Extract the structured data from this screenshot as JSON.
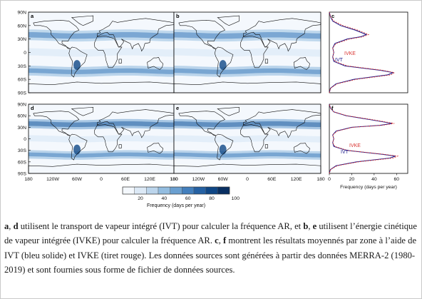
{
  "panels": {
    "a": {
      "letter": "a"
    },
    "b": {
      "letter": "b"
    },
    "c": {
      "letter": "c"
    },
    "d": {
      "letter": "d"
    },
    "e": {
      "letter": "e"
    },
    "f": {
      "letter": "f"
    }
  },
  "lat_ticks": [
    "90N",
    "60N",
    "30N",
    "0",
    "30S",
    "60S",
    "90S"
  ],
  "lon_ticks": [
    "180",
    "120W",
    "60W",
    "0",
    "60E",
    "120E",
    "180"
  ],
  "colorbar": {
    "ticks": [
      "20",
      "40",
      "60",
      "80",
      "100"
    ],
    "label": "Frequency (days per year)",
    "colors": [
      "#f4f8fd",
      "#dce9f6",
      "#bcd5ec",
      "#93bde0",
      "#6a9fd0",
      "#437fbd",
      "#2561a3",
      "#0f4786",
      "#082f62"
    ]
  },
  "profile_axis": {
    "ticks": [
      "0",
      "20",
      "40",
      "60"
    ],
    "label": "Frequency (days per year)"
  },
  "legend": {
    "ivke": "IVKE",
    "ivt": "IVT"
  },
  "colors": {
    "ivt": "#1a1a8c",
    "ivke": "#d9322e"
  },
  "caption": {
    "a": "a",
    "sep1": ", ",
    "d": "d",
    "t1": " utilisent le transport de vapeur intégré (IVT) pour calculer la fréquence AR, et ",
    "b": "b",
    "sep2": ", ",
    "e": "e",
    "t2": " utilisent l’énergie cinétique de vapeur intégrée (IVKE) pour calculer la fréquence AR. ",
    "c": "c",
    "sep3": ", ",
    "f": "f",
    "t3": " montrent les résultats moyennés par zone à l’aide de IVT (bleu solide) et IVKE (tiret rouge). Les données sources sont générées à partir des données MERRA-2 (1980-2019) et sont fournies sous forme de fichier de données sources."
  },
  "chart_data": [
    {
      "type": "line",
      "panel": "c",
      "xlabel": "Frequency (days per year)",
      "xlim": [
        0,
        70
      ],
      "ylim": [
        -90,
        90
      ],
      "y": [
        -90,
        -80,
        -70,
        -60,
        -50,
        -45,
        -40,
        -30,
        -20,
        -10,
        0,
        10,
        20,
        30,
        35,
        40,
        50,
        60,
        70,
        80,
        90
      ],
      "series": [
        {
          "name": "IVT",
          "values": [
            0,
            1,
            6,
            22,
            52,
            57,
            46,
            14,
            4,
            3,
            4,
            3,
            5,
            16,
            28,
            33,
            23,
            10,
            3,
            1,
            0
          ]
        },
        {
          "name": "IVKE",
          "values": [
            0,
            1,
            7,
            24,
            55,
            58,
            48,
            16,
            5,
            3,
            4,
            3,
            6,
            18,
            30,
            35,
            25,
            12,
            4,
            1,
            0
          ]
        }
      ]
    },
    {
      "type": "line",
      "panel": "f",
      "xlabel": "Frequency (days per year)",
      "xlim": [
        0,
        70
      ],
      "ylim": [
        -90,
        90
      ],
      "y": [
        -90,
        -80,
        -70,
        -60,
        -50,
        -45,
        -40,
        -30,
        -20,
        -10,
        0,
        10,
        20,
        30,
        35,
        40,
        50,
        60,
        70,
        80,
        90
      ],
      "series": [
        {
          "name": "IVT",
          "values": [
            0,
            1,
            6,
            24,
            54,
            59,
            46,
            15,
            4,
            3,
            4,
            3,
            6,
            20,
            45,
            56,
            36,
            15,
            4,
            1,
            0
          ]
        },
        {
          "name": "IVKE",
          "values": [
            0,
            1,
            7,
            26,
            57,
            61,
            48,
            16,
            5,
            3,
            4,
            3,
            7,
            21,
            47,
            58,
            38,
            16,
            4,
            1,
            0
          ]
        }
      ]
    }
  ]
}
